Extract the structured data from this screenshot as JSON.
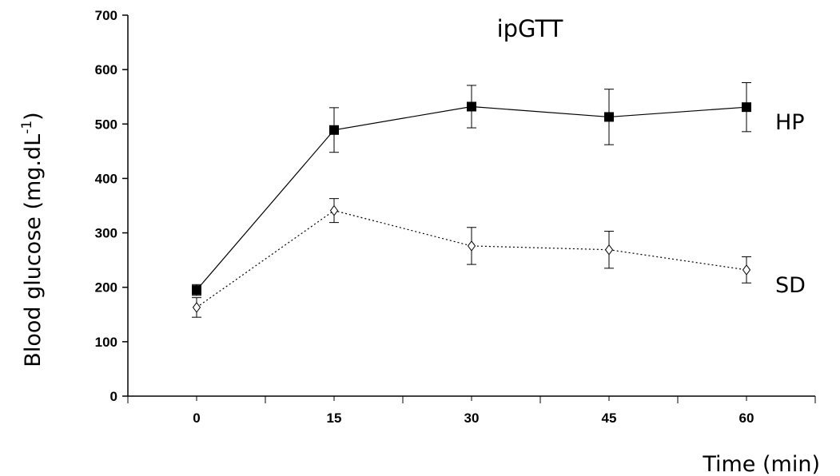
{
  "chart_data": {
    "type": "line",
    "title": "ipGTT",
    "xlabel": "Time (min)",
    "ylabel": "Blood glucose (mg.dL",
    "ylabel_sup": "-1",
    "ylabel_close": ")",
    "x": [
      0,
      15,
      30,
      45,
      60
    ],
    "xticks": [
      "0",
      "15",
      "30",
      "45",
      "60"
    ],
    "xlim": [
      -7.5,
      67.5
    ],
    "ylim": [
      0,
      700
    ],
    "yticks": [
      "0",
      "100",
      "200",
      "300",
      "400",
      "500",
      "600",
      "700"
    ],
    "grid": false,
    "series": [
      {
        "name": "HP",
        "values": [
          195,
          489,
          532,
          513,
          531
        ],
        "error": [
          10,
          41,
          39,
          51,
          45
        ],
        "marker": "filled-square",
        "line": "solid",
        "color": "#000000"
      },
      {
        "name": "SD",
        "values": [
          163,
          341,
          276,
          269,
          232
        ],
        "error": [
          18,
          22,
          34,
          34,
          24
        ],
        "marker": "open-diamond",
        "line": "dotted",
        "color": "#000000"
      }
    ]
  }
}
